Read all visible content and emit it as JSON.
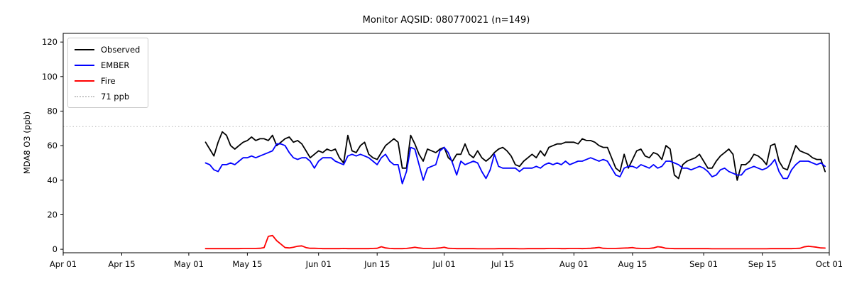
{
  "chart_data": {
    "type": "line",
    "title": "Monitor AQSID: 080770021 (n=149)",
    "xlabel": "",
    "ylabel": "MDA8 O3 (ppb)",
    "grid": false,
    "legend_position": "upper left",
    "n_points": 149,
    "ylim": [
      -2,
      125
    ],
    "xlim_days": [
      0,
      183
    ],
    "start_day": 34,
    "y_ticks": [
      0,
      20,
      40,
      60,
      80,
      100,
      120
    ],
    "x_axis": {
      "ticks": [
        {
          "label": "Apr 01",
          "day": 0
        },
        {
          "label": "Apr 15",
          "day": 14
        },
        {
          "label": "May 01",
          "day": 30
        },
        {
          "label": "May 15",
          "day": 44
        },
        {
          "label": "Jun 01",
          "day": 61
        },
        {
          "label": "Jun 15",
          "day": 75
        },
        {
          "label": "Jul 01",
          "day": 91
        },
        {
          "label": "Jul 15",
          "day": 105
        },
        {
          "label": "Aug 01",
          "day": 122
        },
        {
          "label": "Aug 15",
          "day": 136
        },
        {
          "label": "Sep 01",
          "day": 153
        },
        {
          "label": "Sep 15",
          "day": 167
        },
        {
          "label": "Oct 01",
          "day": 183
        }
      ]
    },
    "reference_line": {
      "label": "71 ppb",
      "value": 71,
      "color": "#c8c8c8",
      "style": "dotted"
    },
    "series": [
      {
        "name": "Observed",
        "color": "#000000",
        "values": [
          62,
          58,
          54,
          62,
          68,
          66,
          60,
          58,
          60,
          62,
          63,
          65,
          63,
          64,
          64,
          63,
          66,
          60,
          62,
          64,
          65,
          62,
          63,
          61,
          57,
          53,
          55,
          57,
          56,
          58,
          57,
          58,
          53,
          50,
          66,
          57,
          56,
          60,
          62,
          55,
          53,
          52,
          56,
          60,
          62,
          64,
          62,
          47,
          47,
          66,
          61,
          55,
          51,
          58,
          57,
          56,
          58,
          59,
          53,
          51,
          55,
          55,
          61,
          55,
          53,
          57,
          53,
          51,
          53,
          56,
          58,
          59,
          57,
          54,
          49,
          48,
          51,
          53,
          55,
          53,
          57,
          54,
          59,
          60,
          61,
          61,
          62,
          62,
          62,
          61,
          64,
          63,
          63,
          62,
          60,
          59,
          59,
          53,
          47,
          45,
          55,
          47,
          52,
          57,
          58,
          54,
          53,
          56,
          55,
          52,
          60,
          58,
          43,
          41,
          49,
          51,
          52,
          53,
          55,
          51,
          47,
          47,
          51,
          54,
          56,
          58,
          55,
          40,
          49,
          49,
          51,
          55,
          54,
          52,
          49,
          60,
          61,
          51,
          47,
          46,
          53,
          60,
          57,
          56,
          55,
          53,
          52,
          52,
          45
        ]
      },
      {
        "name": "EMBER",
        "color": "#0000ff",
        "values": [
          50,
          49,
          46,
          45,
          49,
          49,
          50,
          49,
          51,
          53,
          53,
          54,
          53,
          54,
          55,
          56,
          57,
          61,
          61,
          60,
          56,
          53,
          52,
          53,
          53,
          51,
          47,
          51,
          53,
          53,
          53,
          51,
          50,
          49,
          54,
          55,
          54,
          55,
          54,
          53,
          51,
          49,
          53,
          55,
          51,
          49,
          49,
          38,
          45,
          59,
          58,
          49,
          40,
          47,
          48,
          49,
          57,
          59,
          56,
          50,
          43,
          51,
          49,
          50,
          51,
          50,
          45,
          41,
          46,
          55,
          48,
          47,
          47,
          47,
          47,
          45,
          47,
          47,
          47,
          48,
          47,
          49,
          50,
          49,
          50,
          49,
          51,
          49,
          50,
          51,
          51,
          52,
          53,
          52,
          51,
          52,
          51,
          47,
          43,
          42,
          47,
          48,
          48,
          47,
          49,
          48,
          47,
          49,
          47,
          48,
          51,
          51,
          50,
          49,
          47,
          47,
          46,
          47,
          48,
          47,
          45,
          42,
          43,
          46,
          47,
          45,
          44,
          43,
          43,
          46,
          47,
          48,
          47,
          46,
          47,
          49,
          52,
          45,
          41,
          41,
          46,
          49,
          51,
          51,
          51,
          50,
          49,
          50,
          48
        ]
      },
      {
        "name": "Fire",
        "color": "#ff0000",
        "values": [
          0.4,
          0.4,
          0.4,
          0.4,
          0.4,
          0.4,
          0.4,
          0.4,
          0.4,
          0.5,
          0.5,
          0.5,
          0.5,
          0.6,
          1.0,
          7.5,
          8.0,
          5.0,
          3.0,
          1.0,
          0.8,
          1.2,
          1.8,
          2.0,
          1.0,
          0.6,
          0.6,
          0.5,
          0.4,
          0.4,
          0.4,
          0.4,
          0.4,
          0.5,
          0.4,
          0.4,
          0.4,
          0.4,
          0.4,
          0.4,
          0.5,
          0.6,
          1.5,
          0.8,
          0.5,
          0.4,
          0.4,
          0.4,
          0.5,
          0.8,
          1.2,
          0.8,
          0.5,
          0.5,
          0.5,
          0.6,
          0.8,
          1.2,
          0.6,
          0.5,
          0.4,
          0.4,
          0.4,
          0.4,
          0.4,
          0.3,
          0.3,
          0.3,
          0.3,
          0.3,
          0.4,
          0.4,
          0.4,
          0.4,
          0.4,
          0.3,
          0.3,
          0.4,
          0.4,
          0.4,
          0.4,
          0.4,
          0.5,
          0.5,
          0.5,
          0.4,
          0.4,
          0.5,
          0.5,
          0.5,
          0.4,
          0.5,
          0.6,
          0.8,
          1.1,
          0.6,
          0.5,
          0.5,
          0.5,
          0.6,
          0.7,
          0.8,
          1.0,
          0.6,
          0.5,
          0.5,
          0.5,
          0.8,
          1.5,
          1.2,
          0.6,
          0.5,
          0.4,
          0.4,
          0.4,
          0.4,
          0.4,
          0.4,
          0.4,
          0.4,
          0.4,
          0.3,
          0.3,
          0.3,
          0.3,
          0.3,
          0.3,
          0.3,
          0.3,
          0.3,
          0.3,
          0.3,
          0.3,
          0.3,
          0.3,
          0.4,
          0.4,
          0.4,
          0.4,
          0.4,
          0.4,
          0.5,
          0.6,
          1.4,
          1.8,
          1.5,
          1.2,
          0.8,
          0.7
        ]
      }
    ]
  },
  "legend": {
    "items": [
      {
        "label": "Observed",
        "color": "#000000",
        "style": "solid"
      },
      {
        "label": "EMBER",
        "color": "#0000ff",
        "style": "solid"
      },
      {
        "label": "Fire",
        "color": "#ff0000",
        "style": "solid"
      },
      {
        "label": "71 ppb",
        "color": "#c8c8c8",
        "style": "dotted"
      }
    ]
  }
}
